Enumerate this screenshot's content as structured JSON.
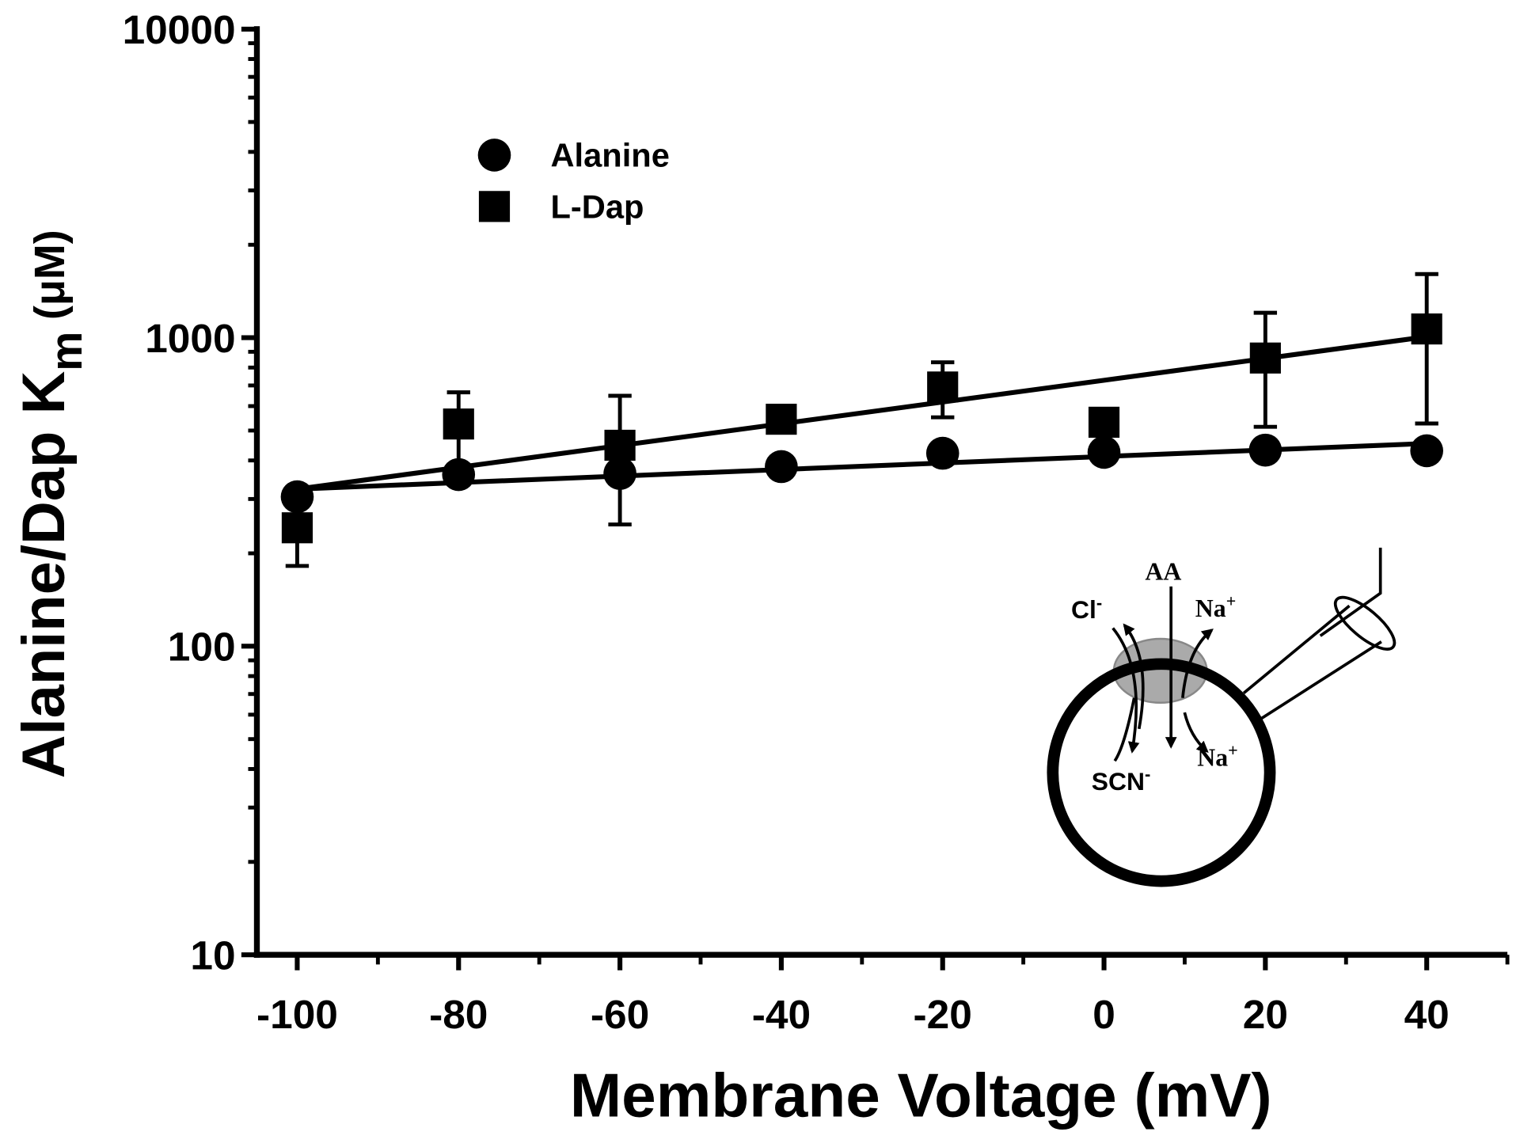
{
  "chart_data": {
    "type": "scatter",
    "xlabel": "Membrane Voltage (mV)",
    "ylabel": {
      "main": "Alanine/Dap K",
      "sub": "m",
      "unit": "(μM)"
    },
    "x": [
      -100,
      -80,
      -60,
      -40,
      -20,
      0,
      20,
      40
    ],
    "series": [
      {
        "name": "Alanine",
        "marker": "circle",
        "color": "#000000",
        "values": [
          305,
          360,
          363,
          382,
          422,
          425,
          432,
          430
        ],
        "fit": {
          "x": [
            -100,
            40
          ],
          "values": [
            323,
            454
          ]
        }
      },
      {
        "name": "L-Dap",
        "marker": "square",
        "color": "#000000",
        "values": [
          242,
          525,
          448,
          544,
          692,
          532,
          859,
          1067
        ],
        "errors": [
          60,
          140,
          200,
          null,
          140,
          null,
          345,
          540
        ],
        "fit": {
          "x": [
            -100,
            40
          ],
          "values": [
            323,
            1007
          ]
        }
      }
    ],
    "xlim": [
      -105,
      50
    ],
    "xticks": [
      -100,
      -80,
      -60,
      -40,
      -20,
      0,
      20,
      40
    ],
    "xminorticks": [
      -90,
      -70,
      -50,
      -30,
      -10,
      10,
      30,
      50
    ],
    "ylim": [
      10,
      10000
    ],
    "yscale": "log",
    "yticks": [
      10,
      100,
      1000,
      10000
    ],
    "yminorticks": [
      20,
      30,
      40,
      50,
      60,
      70,
      80,
      90,
      200,
      300,
      400,
      500,
      600,
      700,
      800,
      900,
      2000,
      3000,
      4000,
      5000,
      6000,
      7000,
      8000,
      9000
    ],
    "legend": "upper left",
    "inset": {
      "aa": "AA",
      "cl": "Cl",
      "cl_sup": "-",
      "na_out": "Na",
      "na_out_sup": "+",
      "na_in": "Na",
      "na_in_sup": "+",
      "scn": "SCN",
      "scn_sup": "-"
    }
  }
}
